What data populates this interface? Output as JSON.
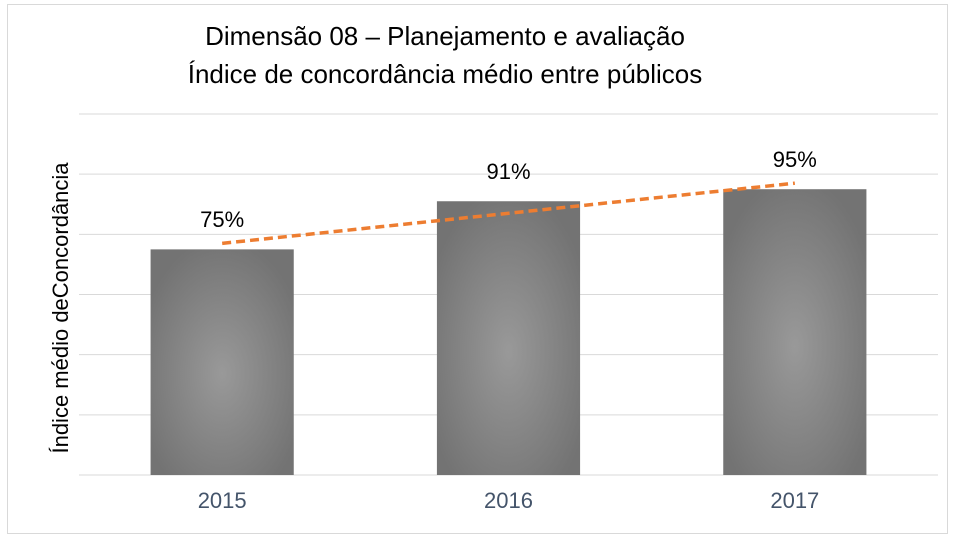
{
  "chart_data": {
    "type": "bar",
    "title": "Dimensão 08  – Planejamento e avaliação",
    "subtitle": "Índice de concordância médio entre públicos",
    "y_label": "Índice médio deConcordância",
    "categories": [
      "2015",
      "2016",
      "2017"
    ],
    "values": [
      75,
      91,
      95
    ],
    "value_labels": [
      "75%",
      "91%",
      "95%"
    ],
    "color": "#7f7f7f",
    "trendline": true,
    "trendline_color": "#ed7d31",
    "ylim": [
      0,
      120
    ],
    "yticks": [
      0,
      20,
      40,
      60,
      80,
      100,
      120
    ],
    "grid": true
  }
}
